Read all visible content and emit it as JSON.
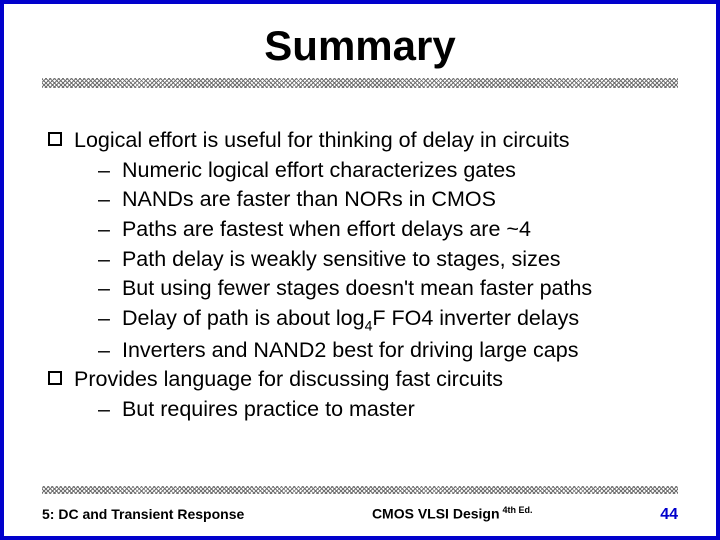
{
  "title": "Summary",
  "bullets": [
    {
      "level": 1,
      "text": "Logical effort is useful for thinking of delay in circuits"
    },
    {
      "level": 2,
      "text": "Numeric logical effort characterizes gates"
    },
    {
      "level": 2,
      "text": "NANDs are faster than NORs in CMOS"
    },
    {
      "level": 2,
      "text": "Paths are fastest when effort delays are ~4"
    },
    {
      "level": 2,
      "text": "Path delay is weakly sensitive to stages, sizes"
    },
    {
      "level": 2,
      "text": "But using fewer stages doesn't mean faster paths"
    },
    {
      "level": 2,
      "text": "Delay of path is about log₄F FO4 inverter delays",
      "hasSub": true,
      "pre": "Delay of path is about log",
      "sub": "4",
      "post": "F FO4 inverter delays"
    },
    {
      "level": 2,
      "text": "Inverters and NAND2 best for driving large caps"
    },
    {
      "level": 1,
      "text": "Provides language for discussing fast circuits"
    },
    {
      "level": 2,
      "text": "But requires practice to master"
    }
  ],
  "footer": {
    "left": "5: DC and Transient Response",
    "center": "CMOS VLSI Design",
    "edition": "4th Ed.",
    "pageNumber": "44"
  },
  "colors": {
    "border": "#0000cc",
    "text": "#000000",
    "pageNum": "#0000cc"
  }
}
